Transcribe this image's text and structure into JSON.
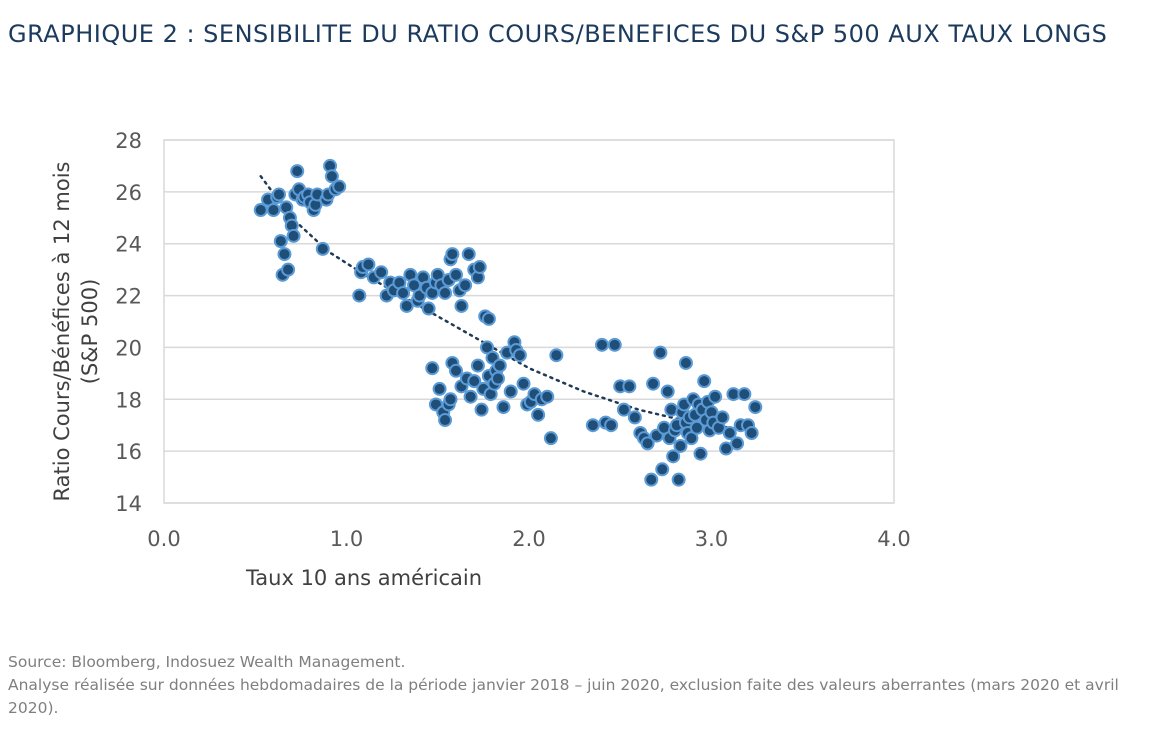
{
  "chart_data": {
    "type": "scatter",
    "title": "GRAPHIQUE 2 : SENSIBILITE DU RATIO COURS/BENEFICES DU S&P 500 AUX TAUX LONGS",
    "xlabel": "Taux 10 ans américain",
    "ylabel_line1": "Ratio Cours/Bénéfices à 12 mois",
    "ylabel_line2": "(S&P 500)",
    "xlim": [
      0,
      4
    ],
    "ylim": [
      14,
      28
    ],
    "x_ticks": [
      "0.0",
      "1.0",
      "2.0",
      "3.0",
      "4.0"
    ],
    "y_ticks": [
      "14",
      "16",
      "18",
      "20",
      "22",
      "24",
      "26",
      "28"
    ],
    "grid": "horizontal",
    "trendline": {
      "style": "dotted",
      "x": [
        0.53,
        0.7,
        0.9,
        1.1,
        1.4,
        1.7,
        2.0,
        2.3,
        2.6,
        2.9,
        3.2
      ],
      "y": [
        26.6,
        25.0,
        23.7,
        22.8,
        21.6,
        20.4,
        19.2,
        18.3,
        17.6,
        17.1,
        16.8
      ]
    },
    "colors": {
      "marker_fill": "#1f4e79",
      "marker_edge": "#5b9bd5",
      "trendline": "#1f3b57",
      "grid": "#d9d9d9",
      "title": "#1b3a5c"
    },
    "points": [
      [
        0.53,
        25.3
      ],
      [
        0.57,
        25.7
      ],
      [
        0.6,
        25.3
      ],
      [
        0.62,
        25.8
      ],
      [
        0.63,
        25.9
      ],
      [
        0.64,
        24.1
      ],
      [
        0.65,
        22.8
      ],
      [
        0.66,
        23.6
      ],
      [
        0.67,
        25.4
      ],
      [
        0.68,
        23.0
      ],
      [
        0.69,
        25.0
      ],
      [
        0.7,
        24.7
      ],
      [
        0.71,
        24.3
      ],
      [
        0.72,
        25.9
      ],
      [
        0.73,
        26.8
      ],
      [
        0.74,
        26.1
      ],
      [
        0.76,
        25.7
      ],
      [
        0.77,
        25.8
      ],
      [
        0.79,
        25.9
      ],
      [
        0.8,
        25.6
      ],
      [
        0.82,
        25.3
      ],
      [
        0.83,
        25.5
      ],
      [
        0.84,
        25.9
      ],
      [
        0.87,
        23.8
      ],
      [
        0.89,
        25.7
      ],
      [
        0.9,
        25.9
      ],
      [
        0.91,
        27.0
      ],
      [
        0.92,
        26.6
      ],
      [
        0.94,
        26.1
      ],
      [
        0.96,
        26.2
      ],
      [
        1.07,
        22.0
      ],
      [
        1.08,
        22.9
      ],
      [
        1.09,
        23.1
      ],
      [
        1.12,
        23.2
      ],
      [
        1.15,
        22.7
      ],
      [
        1.19,
        22.9
      ],
      [
        1.22,
        22.0
      ],
      [
        1.24,
        22.5
      ],
      [
        1.26,
        22.2
      ],
      [
        1.29,
        22.5
      ],
      [
        1.31,
        22.1
      ],
      [
        1.33,
        21.6
      ],
      [
        1.35,
        22.8
      ],
      [
        1.37,
        22.4
      ],
      [
        1.39,
        21.8
      ],
      [
        1.4,
        22.0
      ],
      [
        1.42,
        22.7
      ],
      [
        1.44,
        22.3
      ],
      [
        1.45,
        21.5
      ],
      [
        1.47,
        22.1
      ],
      [
        1.49,
        22.5
      ],
      [
        1.5,
        22.8
      ],
      [
        1.52,
        22.4
      ],
      [
        1.54,
        22.1
      ],
      [
        1.56,
        22.6
      ],
      [
        1.57,
        23.4
      ],
      [
        1.58,
        23.6
      ],
      [
        1.6,
        22.8
      ],
      [
        1.62,
        22.2
      ],
      [
        1.63,
        21.6
      ],
      [
        1.65,
        22.4
      ],
      [
        1.67,
        23.6
      ],
      [
        1.7,
        23.0
      ],
      [
        1.72,
        22.7
      ],
      [
        1.73,
        23.1
      ],
      [
        1.76,
        21.2
      ],
      [
        1.78,
        21.1
      ],
      [
        1.47,
        19.2
      ],
      [
        1.49,
        17.8
      ],
      [
        1.51,
        18.4
      ],
      [
        1.53,
        17.5
      ],
      [
        1.54,
        17.2
      ],
      [
        1.56,
        17.8
      ],
      [
        1.57,
        18.0
      ],
      [
        1.58,
        19.4
      ],
      [
        1.6,
        19.1
      ],
      [
        1.63,
        18.5
      ],
      [
        1.66,
        18.8
      ],
      [
        1.68,
        18.1
      ],
      [
        1.7,
        18.7
      ],
      [
        1.72,
        19.3
      ],
      [
        1.74,
        17.6
      ],
      [
        1.75,
        18.4
      ],
      [
        1.77,
        20.0
      ],
      [
        1.78,
        18.9
      ],
      [
        1.79,
        18.2
      ],
      [
        1.8,
        19.6
      ],
      [
        1.81,
        18.6
      ],
      [
        1.82,
        19.1
      ],
      [
        1.83,
        18.8
      ],
      [
        1.84,
        19.3
      ],
      [
        1.86,
        17.7
      ],
      [
        1.88,
        19.8
      ],
      [
        1.9,
        18.3
      ],
      [
        1.92,
        20.2
      ],
      [
        1.93,
        19.9
      ],
      [
        1.95,
        19.7
      ],
      [
        1.97,
        18.6
      ],
      [
        1.99,
        17.8
      ],
      [
        2.01,
        17.9
      ],
      [
        2.03,
        18.2
      ],
      [
        2.05,
        17.4
      ],
      [
        2.07,
        18.0
      ],
      [
        2.1,
        18.1
      ],
      [
        2.12,
        16.5
      ],
      [
        2.15,
        19.7
      ],
      [
        2.35,
        17.0
      ],
      [
        2.4,
        20.1
      ],
      [
        2.42,
        17.1
      ],
      [
        2.45,
        17.0
      ],
      [
        2.47,
        20.1
      ],
      [
        2.5,
        18.5
      ],
      [
        2.52,
        17.6
      ],
      [
        2.55,
        18.5
      ],
      [
        2.58,
        17.3
      ],
      [
        2.61,
        16.7
      ],
      [
        2.63,
        16.5
      ],
      [
        2.65,
        16.3
      ],
      [
        2.67,
        14.9
      ],
      [
        2.68,
        18.6
      ],
      [
        2.7,
        16.6
      ],
      [
        2.72,
        19.8
      ],
      [
        2.73,
        15.3
      ],
      [
        2.74,
        16.9
      ],
      [
        2.76,
        18.3
      ],
      [
        2.77,
        16.5
      ],
      [
        2.78,
        17.6
      ],
      [
        2.79,
        15.8
      ],
      [
        2.8,
        16.8
      ],
      [
        2.81,
        17.0
      ],
      [
        2.82,
        14.9
      ],
      [
        2.83,
        16.2
      ],
      [
        2.84,
        17.5
      ],
      [
        2.85,
        17.8
      ],
      [
        2.86,
        17.1
      ],
      [
        2.87,
        16.7
      ],
      [
        2.88,
        17.3
      ],
      [
        2.89,
        16.5
      ],
      [
        2.9,
        18.0
      ],
      [
        2.91,
        17.4
      ],
      [
        2.92,
        16.9
      ],
      [
        2.93,
        17.8
      ],
      [
        2.94,
        15.9
      ],
      [
        2.95,
        17.6
      ],
      [
        2.96,
        18.7
      ],
      [
        2.97,
        17.2
      ],
      [
        2.98,
        17.9
      ],
      [
        2.99,
        16.8
      ],
      [
        3.0,
        17.5
      ],
      [
        3.01,
        17.1
      ],
      [
        3.02,
        18.1
      ],
      [
        3.04,
        16.9
      ],
      [
        3.06,
        17.3
      ],
      [
        3.08,
        16.1
      ],
      [
        3.1,
        16.7
      ],
      [
        3.12,
        18.2
      ],
      [
        3.14,
        16.3
      ],
      [
        3.16,
        17.0
      ],
      [
        3.18,
        18.2
      ],
      [
        3.2,
        17.0
      ],
      [
        3.22,
        16.7
      ],
      [
        3.24,
        17.7
      ],
      [
        2.86,
        19.4
      ]
    ]
  },
  "footer": {
    "source": "Source: Bloomberg, Indosuez Wealth Management.",
    "note": "Analyse réalisée sur données hebdomadaires de la période janvier 2018 – juin 2020, exclusion faite des valeurs aberrantes (mars 2020 et avril 2020)."
  }
}
